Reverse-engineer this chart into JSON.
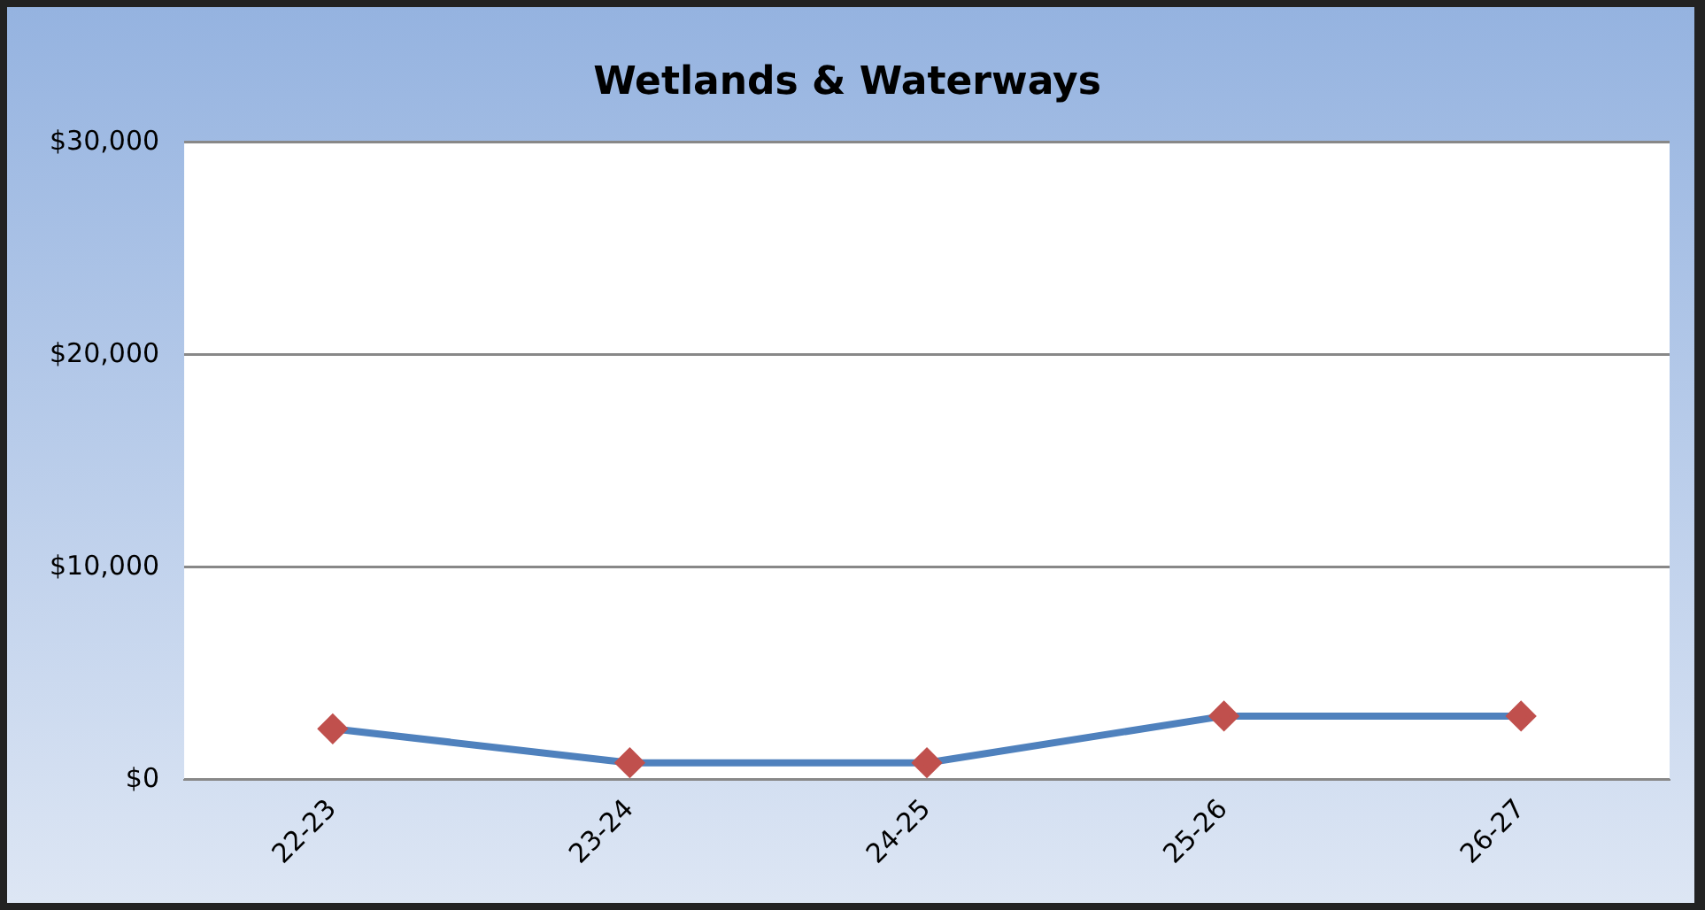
{
  "chart_data": {
    "type": "line",
    "title": "Wetlands & Waterways",
    "categories": [
      "22-23",
      "23-24",
      "24-25",
      "25-26",
      "26-27"
    ],
    "series": [
      {
        "color": "#4f81bd",
        "colors": [
          "#c0504d",
          "#c0504d",
          "#c0504d",
          "#c0504d",
          "#c0504d"
        ],
        "values": [
          2400,
          800,
          800,
          3000,
          3000
        ]
      }
    ],
    "ylim": [
      0,
      30000
    ],
    "yticks": [
      {
        "value": 0,
        "label": "$0"
      },
      {
        "value": 10000,
        "label": "$10,000"
      },
      {
        "value": 20000,
        "label": "$20,000"
      },
      {
        "value": 30000,
        "label": "$30,000"
      }
    ],
    "grid": "y",
    "legend": false,
    "marker": "diamond",
    "line_style": "solid"
  }
}
